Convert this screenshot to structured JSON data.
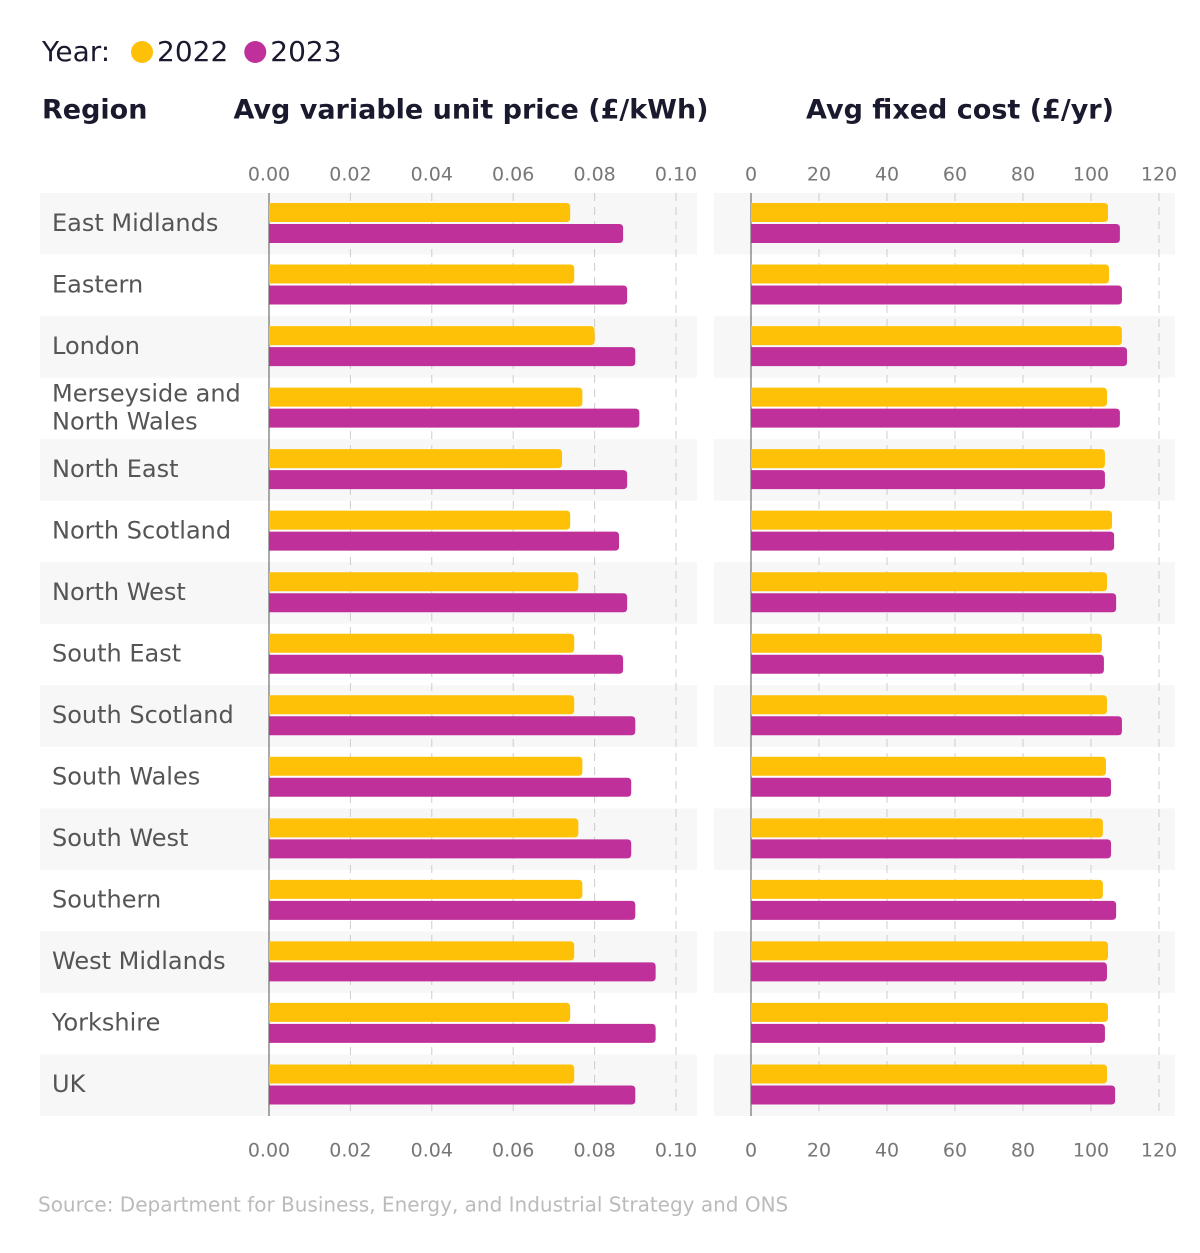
{
  "legend_title": "Year:",
  "row_header": "Region",
  "source": "Source: Department for Business, Energy, and Industrial Strategy and ONS",
  "chart_data": [
    {
      "type": "bar",
      "title": "Avg variable unit price (£/kWh)",
      "categories": [
        "East Midlands",
        "Eastern",
        "London",
        "Merseyside and North Wales",
        "North East",
        "North Scotland",
        "North West",
        "South East",
        "South Scotland",
        "South Wales",
        "South West",
        "Southern",
        "West Midlands",
        "Yorkshire",
        "UK"
      ],
      "series": [
        {
          "name": "2022",
          "color": "#ffc107",
          "values": [
            0.074,
            0.075,
            0.08,
            0.077,
            0.072,
            0.074,
            0.076,
            0.075,
            0.075,
            0.077,
            0.076,
            0.077,
            0.075,
            0.074,
            0.075
          ]
        },
        {
          "name": "2023",
          "color": "#c0309a",
          "values": [
            0.087,
            0.088,
            0.09,
            0.091,
            0.088,
            0.086,
            0.088,
            0.087,
            0.09,
            0.089,
            0.089,
            0.09,
            0.095,
            0.095,
            0.09
          ]
        }
      ],
      "xlim": [
        0,
        0.1
      ],
      "xticks": [
        {
          "value": 0,
          "label": "0.00"
        },
        {
          "value": 0.02,
          "label": "0.02"
        },
        {
          "value": 0.04,
          "label": "0.04"
        },
        {
          "value": 0.06,
          "label": "0.06"
        },
        {
          "value": 0.08,
          "label": "0.08"
        },
        {
          "value": 0.1,
          "label": "0.10"
        }
      ],
      "grid": true
    },
    {
      "type": "bar",
      "title": "Avg fixed cost (£/yr)",
      "series": [
        {
          "color": "#ffc107",
          "values": [
            105,
            105.3,
            109.1,
            104.7,
            104.1,
            106.2,
            104.7,
            103.2,
            104.7,
            104.4,
            103.5,
            103.5,
            105,
            105,
            104.7
          ]
        },
        {
          "color": "#c0309a",
          "values": [
            108.5,
            109.1,
            110.6,
            108.5,
            104.1,
            106.8,
            107.4,
            103.8,
            109.1,
            105.9,
            105.9,
            107.4,
            104.7,
            104.1,
            107.1
          ]
        }
      ],
      "xlim": [
        0,
        120
      ],
      "xticks": [
        0,
        20,
        40,
        60,
        80,
        100,
        120
      ],
      "grid": true
    }
  ]
}
